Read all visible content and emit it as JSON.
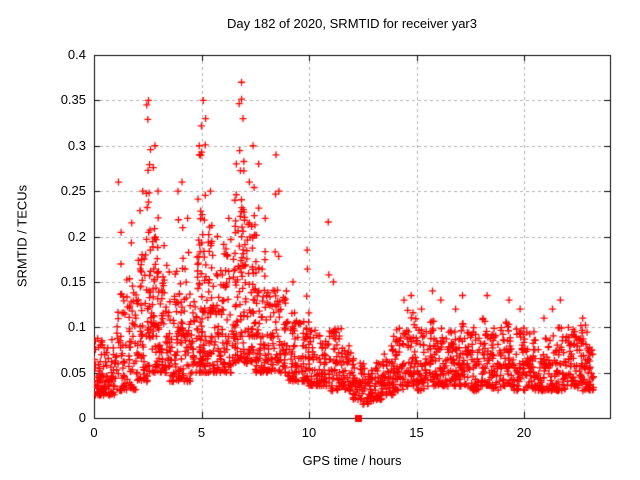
{
  "chart_data": {
    "type": "scatter",
    "title": "Day 182 of 2020, SRMTID for receiver yar3",
    "xlabel": "GPS time / hours",
    "ylabel": "SRMTID / TECUs",
    "xlim": [
      0,
      24
    ],
    "ylim": [
      0,
      0.4
    ],
    "xticks": [
      0,
      5,
      10,
      15,
      20
    ],
    "xtick_labels": [
      "0",
      "5",
      "10",
      "15",
      "20"
    ],
    "yticks": [
      0,
      0.05,
      0.1,
      0.15,
      0.2,
      0.25,
      0.3,
      0.35,
      0.4
    ],
    "ytick_labels": [
      "0",
      "0.05",
      "0.1",
      "0.15",
      "0.2",
      "0.25",
      "0.3",
      "0.35",
      "0.4"
    ],
    "grid": true,
    "legend": "none",
    "marker": "plus",
    "marker_color": "#ff0000",
    "grid_color": "#b0b0b0",
    "axis_color": "#000000",
    "special_points": [
      {
        "x": 12.3,
        "y": 0,
        "marker": "filled-square",
        "color": "#ff0000"
      }
    ],
    "seed": 20201824,
    "band_bins": [
      [
        0.0,
        0.5,
        55,
        0.025,
        0.095
      ],
      [
        0.5,
        1.0,
        48,
        0.025,
        0.09
      ],
      [
        1.0,
        1.5,
        42,
        0.03,
        0.15
      ],
      [
        1.5,
        2.0,
        46,
        0.03,
        0.16
      ],
      [
        2.0,
        2.5,
        50,
        0.04,
        0.18
      ],
      [
        2.5,
        3.0,
        55,
        0.05,
        0.2
      ],
      [
        3.0,
        3.5,
        50,
        0.05,
        0.17
      ],
      [
        3.5,
        4.0,
        50,
        0.04,
        0.16
      ],
      [
        4.0,
        4.5,
        50,
        0.04,
        0.17
      ],
      [
        4.5,
        5.0,
        50,
        0.05,
        0.2
      ],
      [
        5.0,
        5.5,
        55,
        0.05,
        0.22
      ],
      [
        5.5,
        6.0,
        50,
        0.05,
        0.18
      ],
      [
        6.0,
        6.5,
        50,
        0.05,
        0.2
      ],
      [
        6.5,
        7.0,
        55,
        0.06,
        0.24
      ],
      [
        7.0,
        7.5,
        55,
        0.06,
        0.22
      ],
      [
        7.5,
        8.0,
        50,
        0.05,
        0.18
      ],
      [
        8.0,
        8.5,
        46,
        0.05,
        0.15
      ],
      [
        8.5,
        9.0,
        45,
        0.05,
        0.14
      ],
      [
        9.0,
        9.5,
        42,
        0.04,
        0.12
      ],
      [
        9.5,
        10.0,
        42,
        0.04,
        0.11
      ],
      [
        10.0,
        10.5,
        40,
        0.035,
        0.1
      ],
      [
        10.5,
        11.0,
        40,
        0.035,
        0.1
      ],
      [
        11.0,
        11.5,
        40,
        0.03,
        0.1
      ],
      [
        11.5,
        12.0,
        42,
        0.03,
        0.08
      ],
      [
        12.0,
        12.5,
        42,
        0.02,
        0.07
      ],
      [
        12.5,
        13.0,
        42,
        0.015,
        0.06
      ],
      [
        13.0,
        13.5,
        42,
        0.02,
        0.065
      ],
      [
        13.5,
        14.0,
        42,
        0.025,
        0.08
      ],
      [
        14.0,
        14.5,
        42,
        0.03,
        0.1
      ],
      [
        14.5,
        15.0,
        44,
        0.035,
        0.12
      ],
      [
        15.0,
        15.5,
        44,
        0.03,
        0.1
      ],
      [
        15.5,
        16.0,
        44,
        0.035,
        0.11
      ],
      [
        16.0,
        16.5,
        44,
        0.035,
        0.1
      ],
      [
        16.5,
        17.0,
        44,
        0.035,
        0.1
      ],
      [
        17.0,
        17.5,
        44,
        0.035,
        0.105
      ],
      [
        17.5,
        18.0,
        44,
        0.03,
        0.1
      ],
      [
        18.0,
        18.5,
        44,
        0.035,
        0.11
      ],
      [
        18.5,
        19.0,
        44,
        0.03,
        0.1
      ],
      [
        19.0,
        19.5,
        44,
        0.035,
        0.11
      ],
      [
        19.5,
        20.0,
        44,
        0.03,
        0.1
      ],
      [
        20.0,
        20.5,
        42,
        0.03,
        0.095
      ],
      [
        20.5,
        21.0,
        42,
        0.03,
        0.09
      ],
      [
        21.0,
        21.5,
        42,
        0.03,
        0.095
      ],
      [
        21.5,
        22.0,
        42,
        0.03,
        0.1
      ],
      [
        22.0,
        22.5,
        44,
        0.035,
        0.1
      ],
      [
        22.5,
        23.0,
        46,
        0.03,
        0.105
      ],
      [
        23.0,
        23.25,
        26,
        0.03,
        0.08
      ]
    ],
    "spike_columns": [
      [
        1.2,
        0.26,
        5
      ],
      [
        1.8,
        0.215,
        5
      ],
      [
        2.2,
        0.25,
        6
      ],
      [
        2.47,
        0.345,
        10
      ],
      [
        2.6,
        0.35,
        12
      ],
      [
        2.78,
        0.3,
        7
      ],
      [
        2.95,
        0.25,
        5
      ],
      [
        3.3,
        0.19,
        4
      ],
      [
        3.9,
        0.25,
        5
      ],
      [
        4.15,
        0.26,
        5
      ],
      [
        4.4,
        0.22,
        4
      ],
      [
        4.9,
        0.3,
        8
      ],
      [
        5.02,
        0.35,
        11
      ],
      [
        5.15,
        0.33,
        8
      ],
      [
        5.4,
        0.25,
        6
      ],
      [
        5.75,
        0.2,
        4
      ],
      [
        6.2,
        0.22,
        4
      ],
      [
        6.55,
        0.28,
        6
      ],
      [
        6.82,
        0.37,
        13
      ],
      [
        6.95,
        0.33,
        9
      ],
      [
        7.2,
        0.26,
        6
      ],
      [
        7.45,
        0.3,
        9
      ],
      [
        7.62,
        0.28,
        6
      ],
      [
        7.9,
        0.22,
        4
      ],
      [
        8.4,
        0.29,
        5
      ],
      [
        8.6,
        0.25,
        4
      ],
      [
        9.2,
        0.15,
        3
      ],
      [
        9.95,
        0.185,
        5
      ],
      [
        10.9,
        0.216,
        3
      ],
      [
        11.2,
        0.15,
        3
      ],
      [
        13.9,
        0.09,
        3
      ],
      [
        14.4,
        0.13,
        3
      ],
      [
        14.8,
        0.135,
        4
      ],
      [
        15.2,
        0.12,
        3
      ],
      [
        15.7,
        0.14,
        3
      ],
      [
        16.2,
        0.13,
        3
      ],
      [
        16.8,
        0.12,
        3
      ],
      [
        17.2,
        0.135,
        3
      ],
      [
        18.3,
        0.135,
        3
      ],
      [
        19.3,
        0.13,
        3
      ],
      [
        19.8,
        0.12,
        3
      ],
      [
        20.9,
        0.11,
        2
      ],
      [
        21.3,
        0.12,
        2
      ],
      [
        21.7,
        0.13,
        3
      ],
      [
        22.7,
        0.11,
        2
      ]
    ]
  }
}
